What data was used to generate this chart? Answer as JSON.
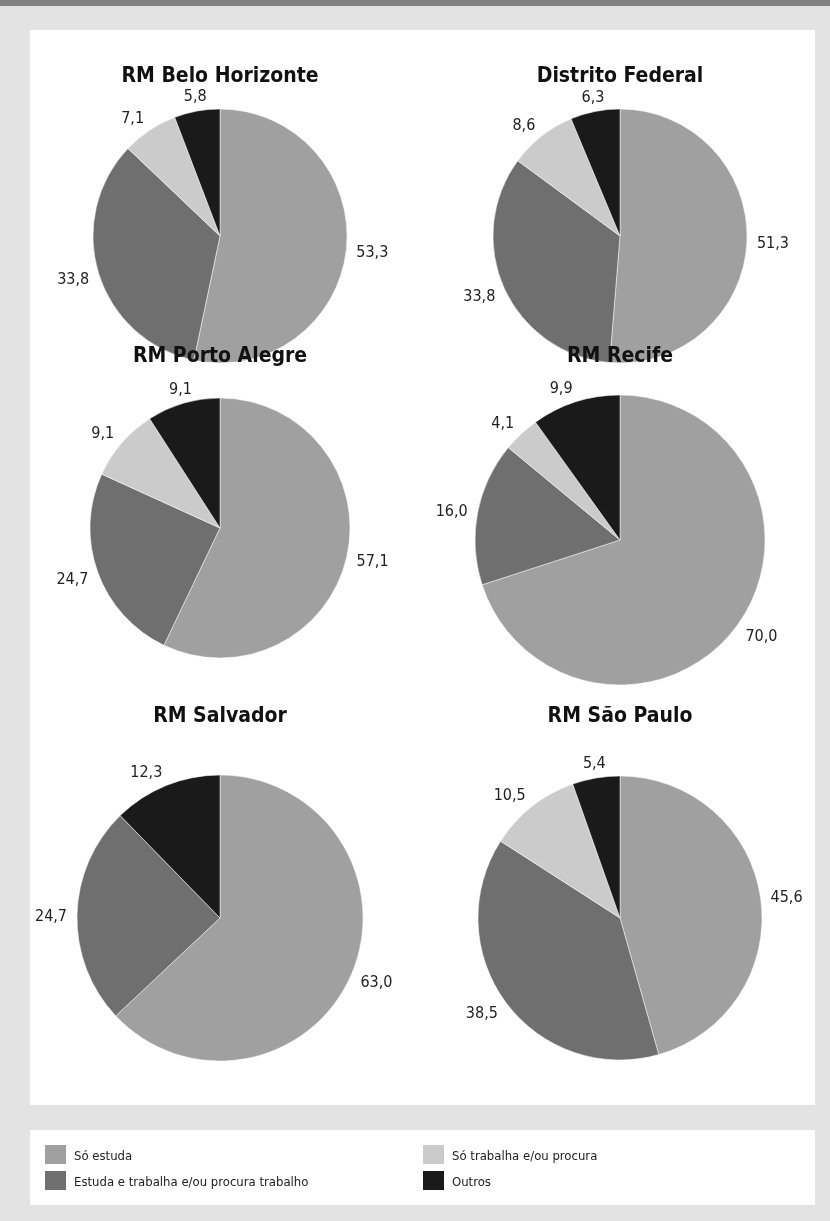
{
  "chart_data": [
    {
      "type": "pie",
      "title": "RM Belo Horizonte",
      "categories": [
        "Só estuda",
        "Estuda e trabalha e/ou procura trabalho",
        "Só trabalha e/ou procura",
        "Outros"
      ],
      "values": [
        53.3,
        33.8,
        7.1,
        5.8
      ],
      "value_labels": [
        "53,3",
        "33,8",
        "7,1",
        "5,8"
      ],
      "colors": [
        "#a0a0a0",
        "#6f6f6f",
        "#cbcbcb",
        "#1a1a1a"
      ],
      "legend": "bottom"
    },
    {
      "type": "pie",
      "title": "Distrito Federal",
      "categories": [
        null,
        null,
        null,
        null
      ],
      "values": [
        51.3,
        33.8,
        8.6,
        6.3
      ],
      "value_labels": [
        "51,3",
        "33,8",
        "8,6",
        "6,3"
      ],
      "colors": [
        "#a0a0a0",
        "#6f6f6f",
        "#cbcbcb",
        "#1a1a1a"
      ]
    },
    {
      "type": "pie",
      "title": "RM Porto Alegre",
      "categories": [
        null,
        null,
        null,
        null
      ],
      "values": [
        57.1,
        24.7,
        9.1,
        9.1
      ],
      "value_labels": [
        "57,1",
        "24,7",
        "9,1",
        "9,1"
      ],
      "colors": [
        "#a0a0a0",
        "#6f6f6f",
        "#cbcbcb",
        "#1a1a1a"
      ]
    },
    {
      "type": "pie",
      "title": "RM Recife",
      "categories": [
        null,
        null,
        null,
        null
      ],
      "values": [
        70.0,
        16.0,
        4.1,
        9.9
      ],
      "value_labels": [
        "70,0",
        "16,0",
        "4,1",
        "9,9"
      ],
      "colors": [
        "#a0a0a0",
        "#6f6f6f",
        "#cbcbcb",
        "#1a1a1a"
      ]
    },
    {
      "type": "pie",
      "title": "RM Salvador",
      "categories": [
        null,
        null,
        null
      ],
      "values": [
        63.0,
        24.7,
        12.3
      ],
      "value_labels": [
        "63,0",
        "24,7",
        "12,3"
      ],
      "colors": [
        "#a0a0a0",
        "#6f6f6f",
        "#1a1a1a"
      ]
    },
    {
      "type": "pie",
      "title": "RM São Paulo",
      "categories": [
        null,
        null,
        null,
        null
      ],
      "values": [
        45.6,
        38.5,
        10.5,
        5.4
      ],
      "value_labels": [
        "45,6",
        "38,5",
        "10,5",
        "5,4"
      ],
      "colors": [
        "#a0a0a0",
        "#6f6f6f",
        "#cbcbcb",
        "#1a1a1a"
      ]
    }
  ]
}
